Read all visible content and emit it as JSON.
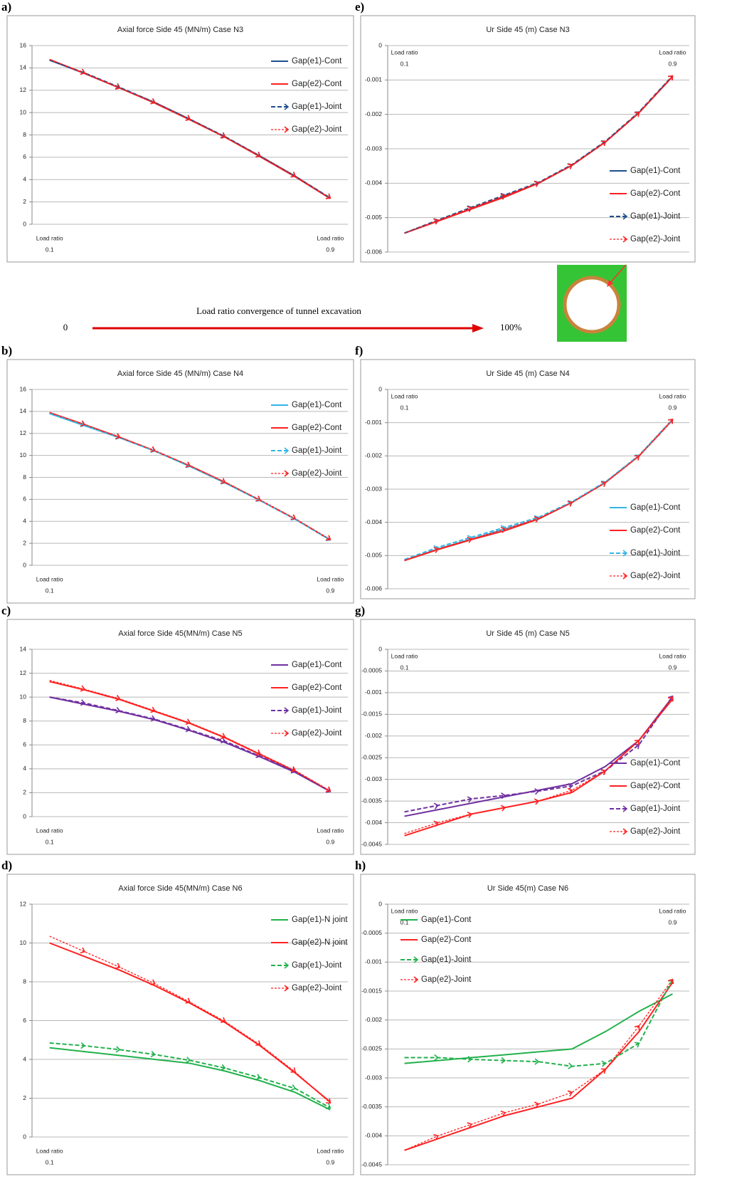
{
  "convergence": {
    "label": "Load ratio convergence of tunnel excavation",
    "start": "0",
    "end": "100%"
  },
  "chart_data": [
    {
      "type": "line",
      "panel": "a)",
      "title": "Axial force Side 45 (MN/m) Case N3",
      "xlabel": "Load ratio",
      "x": [
        0.1,
        0.2,
        0.3,
        0.4,
        0.5,
        0.6,
        0.7,
        0.8,
        0.9
      ],
      "xlim": [
        0.05,
        0.95
      ],
      "xticks": [
        0.1,
        0.9
      ],
      "xlabel_position": "bottom",
      "ylim": [
        0,
        16
      ],
      "yticks": [
        0,
        2,
        4,
        6,
        8,
        10,
        12,
        14,
        16
      ],
      "grid": true,
      "legend": "upper right",
      "series": [
        {
          "name": "Gap(e1)-Cont",
          "color": "#1f4e8c",
          "line_style": "solid",
          "values": [
            14.7,
            13.5,
            12.2,
            10.9,
            9.4,
            7.8,
            6.1,
            4.3,
            2.3
          ]
        },
        {
          "name": "Gap(e2)-Cont",
          "color": "#ff2020",
          "line_style": "solid",
          "values": [
            14.75,
            13.5,
            12.2,
            10.85,
            9.35,
            7.8,
            6.05,
            4.25,
            2.3
          ]
        },
        {
          "name": "Gap(e1)-Joint",
          "color": "#1f4e8c",
          "line_style": "dashed",
          "marker": "arrow",
          "values": [
            14.7,
            13.55,
            12.25,
            10.9,
            9.4,
            7.85,
            6.1,
            4.3,
            2.35
          ]
        },
        {
          "name": "Gap(e2)-Joint",
          "color": "#ff2020",
          "line_style": "dotted",
          "marker": "arrow",
          "values": [
            14.75,
            13.55,
            12.2,
            10.9,
            9.4,
            7.8,
            6.1,
            4.3,
            2.35
          ]
        }
      ]
    },
    {
      "type": "line",
      "panel": "b)",
      "title": "Axial force Side 45 (MN/m) Case N4",
      "xlabel": "Load ratio",
      "x": [
        0.1,
        0.2,
        0.3,
        0.4,
        0.5,
        0.6,
        0.7,
        0.8,
        0.9
      ],
      "xlim": [
        0.05,
        0.95
      ],
      "xticks": [
        0.1,
        0.9
      ],
      "xlabel_position": "bottom",
      "ylim": [
        0,
        16
      ],
      "yticks": [
        0,
        2,
        4,
        6,
        8,
        10,
        12,
        14,
        16
      ],
      "grid": true,
      "legend": "upper right",
      "series": [
        {
          "name": "Gap(e1)-Cont",
          "color": "#33b5e5",
          "line_style": "solid",
          "values": [
            13.8,
            12.7,
            11.6,
            10.4,
            9.0,
            7.5,
            5.9,
            4.2,
            2.3
          ]
        },
        {
          "name": "Gap(e2)-Cont",
          "color": "#ff2020",
          "line_style": "solid",
          "values": [
            13.9,
            12.8,
            11.65,
            10.4,
            9.05,
            7.55,
            5.9,
            4.2,
            2.3
          ]
        },
        {
          "name": "Gap(e1)-Joint",
          "color": "#33b5e5",
          "line_style": "dashed",
          "marker": "arrow",
          "values": [
            13.85,
            12.75,
            11.6,
            10.4,
            9.0,
            7.5,
            5.9,
            4.2,
            2.3
          ]
        },
        {
          "name": "Gap(e2)-Joint",
          "color": "#ff2020",
          "line_style": "dotted",
          "marker": "arrow",
          "values": [
            13.9,
            12.8,
            11.65,
            10.45,
            9.05,
            7.55,
            5.95,
            4.25,
            2.35
          ]
        }
      ]
    },
    {
      "type": "line",
      "panel": "c)",
      "title": "Axial force Side  45(MN/m) Case N5",
      "xlabel": "Load ratio",
      "x": [
        0.1,
        0.2,
        0.3,
        0.4,
        0.5,
        0.6,
        0.7,
        0.8,
        0.9
      ],
      "xlim": [
        0.05,
        0.95
      ],
      "xticks": [
        0.1,
        0.9
      ],
      "xlabel_position": "bottom",
      "ylim": [
        0,
        14
      ],
      "yticks": [
        0,
        2,
        4,
        6,
        8,
        10,
        12,
        14
      ],
      "grid": true,
      "legend": "upper right",
      "series": [
        {
          "name": "Gap(e1)-Cont",
          "color": "#7030a0",
          "line_style": "solid",
          "values": [
            10.0,
            9.4,
            8.8,
            8.1,
            7.2,
            6.2,
            5.0,
            3.7,
            2.1
          ]
        },
        {
          "name": "Gap(e2)-Cont",
          "color": "#ff2020",
          "line_style": "solid",
          "values": [
            11.3,
            10.6,
            9.8,
            8.8,
            7.8,
            6.6,
            5.2,
            3.8,
            2.1
          ]
        },
        {
          "name": "Gap(e1)-Joint",
          "color": "#7030a0",
          "line_style": "dashed",
          "marker": "arrow",
          "values": [
            10.0,
            9.5,
            8.85,
            8.15,
            7.25,
            6.3,
            5.05,
            3.75,
            2.1
          ]
        },
        {
          "name": "Gap(e2)-Joint",
          "color": "#ff2020",
          "line_style": "dotted",
          "marker": "arrow",
          "values": [
            11.4,
            10.65,
            9.85,
            8.85,
            7.85,
            6.65,
            5.25,
            3.85,
            2.15
          ]
        }
      ]
    },
    {
      "type": "line",
      "panel": "d)",
      "title": "Axial force Side  45(MN/m) Case N6",
      "xlabel": "Load ratio",
      "x": [
        0.1,
        0.2,
        0.3,
        0.4,
        0.5,
        0.6,
        0.7,
        0.8,
        0.9
      ],
      "xlim": [
        0.05,
        0.95
      ],
      "xticks": [
        0.1,
        0.9
      ],
      "xlabel_position": "bottom",
      "ylim": [
        0,
        12
      ],
      "yticks": [
        0,
        2,
        4,
        6,
        8,
        10,
        12
      ],
      "grid": true,
      "legend": "upper right",
      "series": [
        {
          "name": "Gap(e1)-N joint",
          "color": "#22b14c",
          "line_style": "solid",
          "values": [
            4.6,
            4.4,
            4.2,
            4.0,
            3.8,
            3.4,
            2.9,
            2.3,
            1.4
          ]
        },
        {
          "name": "Gap(e2)-N joint",
          "color": "#ff2020",
          "line_style": "solid",
          "values": [
            10.0,
            9.3,
            8.6,
            7.8,
            6.9,
            5.9,
            4.7,
            3.3,
            1.8
          ]
        },
        {
          "name": "Gap(e1)-Joint",
          "color": "#22b14c",
          "line_style": "dashed",
          "marker": "arrow",
          "values": [
            4.85,
            4.7,
            4.5,
            4.25,
            3.95,
            3.55,
            3.05,
            2.5,
            1.5
          ]
        },
        {
          "name": "Gap(e2)-Joint",
          "color": "#ff2020",
          "line_style": "dotted",
          "marker": "arrow",
          "values": [
            10.35,
            9.55,
            8.75,
            7.9,
            6.95,
            5.95,
            4.75,
            3.35,
            1.75
          ]
        }
      ]
    },
    {
      "type": "line",
      "panel": "e)",
      "title": "Ur Side 45 (m) Case N3",
      "xlabel": "Load ratio",
      "x": [
        0.1,
        0.2,
        0.3,
        0.4,
        0.5,
        0.6,
        0.7,
        0.8,
        0.9
      ],
      "xlim": [
        0.05,
        0.95
      ],
      "xticks": [
        0.1,
        0.9
      ],
      "xlabel_position": "top",
      "ylim": [
        -0.006,
        0
      ],
      "yticks": [
        0,
        -0.001,
        -0.002,
        -0.003,
        -0.004,
        -0.005,
        -0.006
      ],
      "grid": true,
      "legend": "lower right",
      "series": [
        {
          "name": "Gap(e1)-Cont",
          "color": "#1f4e8c",
          "line_style": "solid",
          "values": [
            -0.00545,
            -0.0051,
            -0.00474,
            -0.00438,
            -0.004,
            -0.00348,
            -0.0028,
            -0.00195,
            -0.0009
          ]
        },
        {
          "name": "Gap(e2)-Cont",
          "color": "#ff2020",
          "line_style": "solid",
          "values": [
            -0.00545,
            -0.0051,
            -0.00475,
            -0.0044,
            -0.004,
            -0.00348,
            -0.0028,
            -0.00195,
            -0.0009
          ]
        },
        {
          "name": "Gap(e1)-Joint",
          "color": "#1f4e8c",
          "line_style": "dashed",
          "marker": "arrow",
          "values": [
            -0.00545,
            -0.00507,
            -0.0047,
            -0.00434,
            -0.00398,
            -0.00346,
            -0.00278,
            -0.00193,
            -0.00088
          ]
        },
        {
          "name": "Gap(e2)-Joint",
          "color": "#ff2020",
          "line_style": "dotted",
          "marker": "arrow",
          "values": [
            -0.00545,
            -0.00508,
            -0.00472,
            -0.00436,
            -0.00399,
            -0.00347,
            -0.00279,
            -0.00194,
            -0.00088
          ]
        }
      ]
    },
    {
      "type": "line",
      "panel": "f)",
      "title": "Ur Side 45 (m) Case N4",
      "xlabel": "Load ratio",
      "x": [
        0.1,
        0.2,
        0.3,
        0.4,
        0.5,
        0.6,
        0.7,
        0.8,
        0.9
      ],
      "xlim": [
        0.05,
        0.95
      ],
      "xticks": [
        0.1,
        0.9
      ],
      "xlabel_position": "top",
      "ylim": [
        -0.006,
        0
      ],
      "yticks": [
        0,
        -0.001,
        -0.002,
        -0.003,
        -0.004,
        -0.005,
        -0.006
      ],
      "grid": true,
      "legend": "lower right",
      "series": [
        {
          "name": "Gap(e1)-Cont",
          "color": "#33b5e5",
          "line_style": "solid",
          "values": [
            -0.00515,
            -0.0048,
            -0.0045,
            -0.0042,
            -0.0039,
            -0.0034,
            -0.0028,
            -0.002,
            -0.00092
          ]
        },
        {
          "name": "Gap(e2)-Cont",
          "color": "#ff2020",
          "line_style": "solid",
          "values": [
            -0.00515,
            -0.00482,
            -0.00452,
            -0.00425,
            -0.0039,
            -0.0034,
            -0.0028,
            -0.002,
            -0.00092
          ]
        },
        {
          "name": "Gap(e1)-Joint",
          "color": "#33b5e5",
          "line_style": "dashed",
          "marker": "arrow",
          "values": [
            -0.00512,
            -0.00475,
            -0.00445,
            -0.00415,
            -0.00385,
            -0.00338,
            -0.00278,
            -0.00198,
            -0.0009
          ]
        },
        {
          "name": "Gap(e2)-Joint",
          "color": "#ff2020",
          "line_style": "dotted",
          "marker": "arrow",
          "values": [
            -0.00514,
            -0.0048,
            -0.0045,
            -0.0042,
            -0.00388,
            -0.0034,
            -0.0028,
            -0.002,
            -0.0009
          ]
        }
      ]
    },
    {
      "type": "line",
      "panel": "g)",
      "title": "Ur Side 45 (m) Case N5",
      "xlabel": "Load ratio",
      "x": [
        0.1,
        0.2,
        0.3,
        0.4,
        0.5,
        0.6,
        0.7,
        0.8,
        0.9
      ],
      "xlim": [
        0.05,
        0.95
      ],
      "xticks": [
        0.1,
        0.9
      ],
      "xlabel_position": "top",
      "ylim": [
        -0.0045,
        0
      ],
      "yticks": [
        0,
        -0.0005,
        -0.001,
        -0.0015,
        -0.002,
        -0.0025,
        -0.003,
        -0.0035,
        -0.004,
        -0.0045
      ],
      "grid": true,
      "legend": "lower right",
      "series": [
        {
          "name": "Gap(e1)-Cont",
          "color": "#7030a0",
          "line_style": "solid",
          "values": [
            -0.00385,
            -0.0037,
            -0.00355,
            -0.0034,
            -0.00325,
            -0.0031,
            -0.0027,
            -0.0021,
            -0.0011
          ]
        },
        {
          "name": "Gap(e2)-Cont",
          "color": "#ff2020",
          "line_style": "solid",
          "values": [
            -0.0043,
            -0.00405,
            -0.0038,
            -0.00365,
            -0.0035,
            -0.0033,
            -0.0028,
            -0.0021,
            -0.00115
          ]
        },
        {
          "name": "Gap(e1)-Joint",
          "color": "#7030a0",
          "line_style": "dashed",
          "marker": "arrow",
          "values": [
            -0.00375,
            -0.0036,
            -0.00345,
            -0.00337,
            -0.00327,
            -0.00315,
            -0.0028,
            -0.0022,
            -0.00108
          ]
        },
        {
          "name": "Gap(e2)-Joint",
          "color": "#ff2020",
          "line_style": "dotted",
          "marker": "arrow",
          "values": [
            -0.00425,
            -0.004,
            -0.0038,
            -0.00365,
            -0.0035,
            -0.00325,
            -0.0028,
            -0.0021,
            -0.0011
          ]
        }
      ]
    },
    {
      "type": "line",
      "panel": "h)",
      "title": "Ur Side  45(m) Case N6",
      "xlabel": "Load ratio",
      "x": [
        0.1,
        0.2,
        0.3,
        0.4,
        0.5,
        0.6,
        0.7,
        0.8,
        0.9
      ],
      "xlim": [
        0.05,
        0.95
      ],
      "xticks": [
        0.1,
        0.9
      ],
      "xlabel_position": "top",
      "ylim": [
        -0.0045,
        0
      ],
      "yticks": [
        0,
        -0.0005,
        -0.001,
        -0.0015,
        -0.002,
        -0.0025,
        -0.003,
        -0.0035,
        -0.004,
        -0.0045
      ],
      "grid": true,
      "legend": "upper left",
      "series": [
        {
          "name": "Gap(e1)-Cont",
          "color": "#22b14c",
          "line_style": "solid",
          "values": [
            -0.00275,
            -0.0027,
            -0.00265,
            -0.0026,
            -0.00255,
            -0.0025,
            -0.0022,
            -0.00185,
            -0.00155
          ]
        },
        {
          "name": "Gap(e2)-Cont",
          "color": "#ff2020",
          "line_style": "solid",
          "values": [
            -0.00425,
            -0.00405,
            -0.00385,
            -0.00365,
            -0.0035,
            -0.00335,
            -0.00285,
            -0.0022,
            -0.00135
          ]
        },
        {
          "name": "Gap(e1)-Joint",
          "color": "#22b14c",
          "line_style": "dashed",
          "marker": "arrow",
          "values": [
            -0.00265,
            -0.00265,
            -0.00268,
            -0.0027,
            -0.00272,
            -0.0028,
            -0.00275,
            -0.0024,
            -0.0013
          ]
        },
        {
          "name": "Gap(e2)-Joint",
          "color": "#ff2020",
          "line_style": "dotted",
          "marker": "arrow",
          "values": [
            -0.00425,
            -0.004,
            -0.0038,
            -0.0036,
            -0.00345,
            -0.00325,
            -0.00285,
            -0.0021,
            -0.0013
          ]
        }
      ]
    }
  ]
}
